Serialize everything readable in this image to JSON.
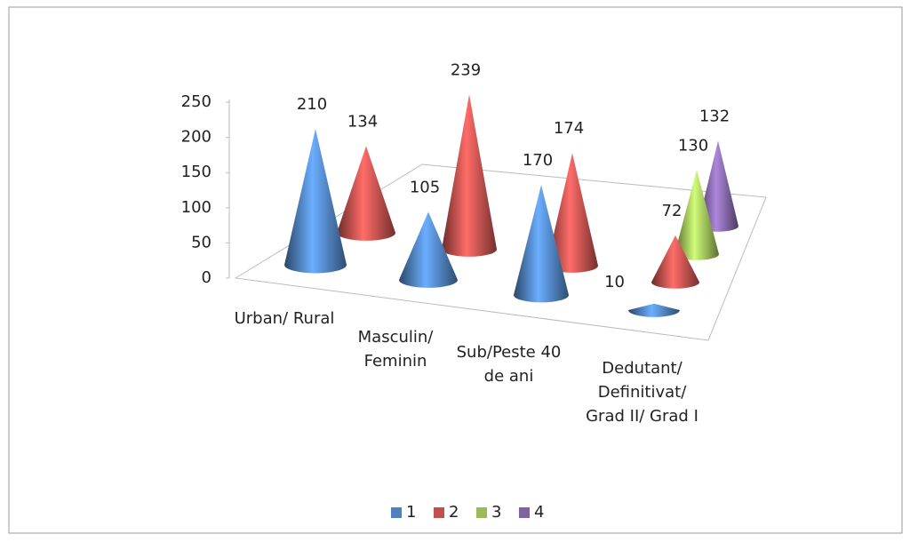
{
  "chart_data": {
    "type": "cone3d",
    "categories": [
      "Urban/ Rural",
      "Masculin/ Feminin",
      "Sub/Peste 40 de ani",
      "Dedutant/ Definitivat/ Grad II/ Grad I"
    ],
    "series": [
      {
        "name": "1",
        "color": "#4f81bd",
        "values": [
          210,
          105,
          170,
          10
        ]
      },
      {
        "name": "2",
        "color": "#c0504d",
        "values": [
          134,
          239,
          174,
          72
        ]
      },
      {
        "name": "3",
        "color": "#9bbb59",
        "values": [
          null,
          null,
          null,
          130
        ]
      },
      {
        "name": "4",
        "color": "#8064a2",
        "values": [
          null,
          null,
          null,
          132
        ]
      }
    ],
    "ylim": [
      0,
      250
    ],
    "yticks": [
      0,
      50,
      100,
      150,
      200,
      250
    ],
    "legend": "bottom"
  }
}
